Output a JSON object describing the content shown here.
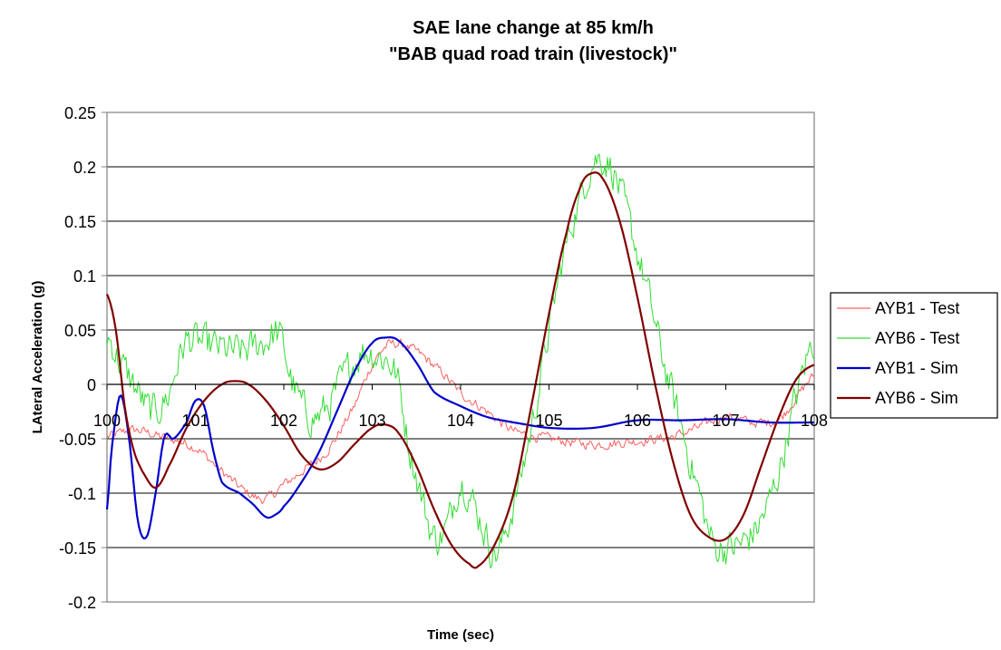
{
  "chart_data": {
    "type": "line",
    "title": [
      "SAE lane change at 85 km/h",
      "\"BAB quad road train (livestock)\""
    ],
    "xlabel": "Time (sec)",
    "ylabel": "LAteral Acceleration (g)",
    "xlim": [
      100,
      108
    ],
    "ylim": [
      -0.2,
      0.25
    ],
    "x_ticks": [
      "100",
      "101",
      "102",
      "103",
      "104",
      "105",
      "106",
      "107",
      "108"
    ],
    "y_ticks": [
      "0.25",
      "0.2",
      "0.15",
      "0.1",
      "0.05",
      "0",
      "-0.05",
      "-0.1",
      "-0.15",
      "-0.2"
    ],
    "grid": "horizontal",
    "legend_position": "right",
    "series": [
      {
        "name": "AYB1 - Test",
        "color": "#ff6060",
        "noisy": true,
        "x": [
          100.0,
          100.3,
          100.6,
          101.0,
          101.3,
          101.6,
          101.8,
          102.0,
          102.2,
          102.5,
          102.8,
          103.0,
          103.2,
          103.5,
          103.8,
          104.0,
          104.3,
          104.6,
          105.0,
          105.5,
          106.0,
          106.4,
          106.6,
          107.0,
          107.3,
          107.6,
          107.8,
          108.0
        ],
        "y": [
          -0.048,
          -0.042,
          -0.048,
          -0.058,
          -0.08,
          -0.1,
          -0.105,
          -0.092,
          -0.08,
          -0.06,
          -0.02,
          0.018,
          0.037,
          0.03,
          0.01,
          -0.008,
          -0.025,
          -0.043,
          -0.05,
          -0.055,
          -0.052,
          -0.048,
          -0.042,
          -0.03,
          -0.035,
          -0.032,
          -0.012,
          0.008
        ]
      },
      {
        "name": "AYB6 - Test",
        "color": "#33dd33",
        "noisy": true,
        "x": [
          100.0,
          100.15,
          100.3,
          100.5,
          100.7,
          100.8,
          100.9,
          101.2,
          101.5,
          101.8,
          101.95,
          102.1,
          102.3,
          102.5,
          102.7,
          102.9,
          103.1,
          103.2,
          103.3,
          103.4,
          103.55,
          103.7,
          103.85,
          104.0,
          104.2,
          104.4,
          104.6,
          104.8,
          105.0,
          105.2,
          105.35,
          105.5,
          105.7,
          105.9,
          106.1,
          106.3,
          106.5,
          106.7,
          106.85,
          107.0,
          107.2,
          107.4,
          107.6,
          107.8,
          108.0
        ],
        "y": [
          0.045,
          0.02,
          0.0,
          -0.025,
          -0.01,
          0.02,
          0.04,
          0.035,
          0.03,
          0.04,
          0.045,
          0.0,
          -0.03,
          -0.02,
          0.01,
          0.03,
          0.025,
          0.02,
          0.0,
          -0.05,
          -0.1,
          -0.14,
          -0.13,
          -0.09,
          -0.12,
          -0.155,
          -0.11,
          -0.04,
          0.05,
          0.13,
          0.17,
          0.205,
          0.2,
          0.15,
          0.09,
          0.02,
          -0.04,
          -0.1,
          -0.145,
          -0.15,
          -0.145,
          -0.125,
          -0.08,
          -0.01,
          0.04
        ]
      },
      {
        "name": "AYB1 - Sim",
        "color": "#0000cc",
        "noisy": false,
        "x": [
          100.0,
          100.05,
          100.15,
          100.25,
          100.35,
          100.45,
          100.55,
          100.65,
          100.75,
          100.9,
          101.0,
          101.1,
          101.2,
          101.3,
          101.5,
          101.65,
          101.8,
          101.9,
          102.0,
          102.2,
          102.4,
          102.6,
          102.8,
          103.0,
          103.15,
          103.3,
          103.5,
          103.7,
          104.0,
          104.3,
          104.6,
          105.0,
          105.5,
          106.0,
          106.5,
          107.0,
          107.5,
          108.0
        ],
        "y": [
          -0.115,
          -0.06,
          -0.01,
          -0.05,
          -0.126,
          -0.14,
          -0.1,
          -0.048,
          -0.05,
          -0.035,
          -0.015,
          -0.02,
          -0.06,
          -0.09,
          -0.1,
          -0.11,
          -0.122,
          -0.12,
          -0.112,
          -0.09,
          -0.062,
          -0.025,
          0.012,
          0.038,
          0.043,
          0.04,
          0.02,
          -0.007,
          -0.02,
          -0.03,
          -0.035,
          -0.04,
          -0.04,
          -0.033,
          -0.033,
          -0.032,
          -0.035,
          -0.035
        ]
      },
      {
        "name": "AYB6 - Sim",
        "color": "#800000",
        "noisy": false,
        "x": [
          100.0,
          100.1,
          100.2,
          100.3,
          100.4,
          100.55,
          100.7,
          100.9,
          101.1,
          101.3,
          101.45,
          101.6,
          101.8,
          102.0,
          102.2,
          102.4,
          102.6,
          102.8,
          103.0,
          103.15,
          103.3,
          103.5,
          103.7,
          103.9,
          104.1,
          104.2,
          104.4,
          104.6,
          104.8,
          105.0,
          105.2,
          105.35,
          105.45,
          105.6,
          105.8,
          106.0,
          106.2,
          106.4,
          106.6,
          106.8,
          107.0,
          107.2,
          107.4,
          107.6,
          107.8,
          108.0
        ],
        "y": [
          0.083,
          0.05,
          -0.02,
          -0.06,
          -0.08,
          -0.095,
          -0.075,
          -0.04,
          -0.015,
          0.0,
          0.003,
          0.0,
          -0.015,
          -0.038,
          -0.065,
          -0.078,
          -0.072,
          -0.055,
          -0.04,
          -0.037,
          -0.045,
          -0.075,
          -0.115,
          -0.148,
          -0.165,
          -0.167,
          -0.145,
          -0.1,
          -0.02,
          0.065,
          0.14,
          0.18,
          0.193,
          0.19,
          0.15,
          0.08,
          0.0,
          -0.07,
          -0.12,
          -0.14,
          -0.142,
          -0.12,
          -0.075,
          -0.03,
          0.005,
          0.018
        ]
      }
    ]
  }
}
